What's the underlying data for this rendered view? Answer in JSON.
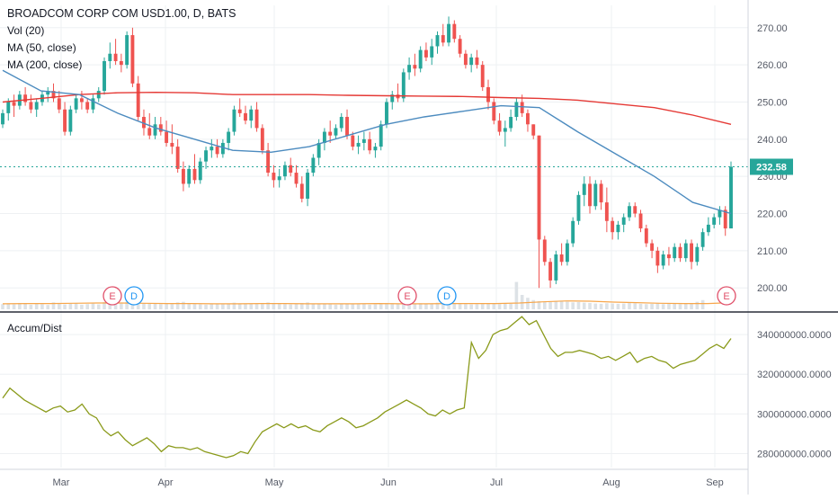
{
  "chart_data": {
    "type": "candlestick",
    "symbol_title": "BROADCOM CORP COM USD1.00, D, BATS",
    "indicators": [
      "Vol (20)",
      "MA (50, close)",
      "MA (200, close)"
    ],
    "last_price_label": "232.58",
    "last_price": 232.58,
    "price_axis": {
      "ticks": [
        "270.00",
        "260.00",
        "250.00",
        "240.00",
        "230.00",
        "220.00",
        "210.00",
        "200.00"
      ],
      "ylim": [
        194,
        276
      ]
    },
    "x_axis": {
      "labels": [
        "Mar",
        "Apr",
        "May",
        "Jun",
        "Jul",
        "Aug",
        "Sep"
      ]
    },
    "events": [
      {
        "label": "E",
        "kind": "earnings",
        "color": "#e0506a"
      },
      {
        "label": "D",
        "kind": "dividend",
        "color": "#2196f3"
      },
      {
        "label": "E",
        "kind": "earnings",
        "color": "#e0506a"
      },
      {
        "label": "D",
        "kind": "dividend",
        "color": "#2196f3"
      },
      {
        "label": "E",
        "kind": "earnings",
        "color": "#e0506a"
      }
    ],
    "ohlc": [
      [
        244,
        248,
        243,
        247
      ],
      [
        247,
        251,
        245,
        250
      ],
      [
        250,
        252,
        246,
        249
      ],
      [
        249,
        253,
        248,
        252
      ],
      [
        252,
        254,
        249,
        250
      ],
      [
        250,
        252,
        247,
        248
      ],
      [
        248,
        251,
        246,
        250
      ],
      [
        250,
        253,
        249,
        252
      ],
      [
        252,
        254,
        250,
        253
      ],
      [
        253,
        255,
        250,
        251
      ],
      [
        251,
        253,
        247,
        248
      ],
      [
        248,
        250,
        241,
        242
      ],
      [
        242,
        249,
        241,
        248
      ],
      [
        248,
        252,
        247,
        251
      ],
      [
        251,
        253,
        248,
        250
      ],
      [
        250,
        251,
        247,
        248
      ],
      [
        248,
        252,
        247,
        251
      ],
      [
        251,
        254,
        250,
        253
      ],
      [
        253,
        262,
        252,
        261
      ],
      [
        261,
        266,
        259,
        263
      ],
      [
        263,
        267,
        260,
        261
      ],
      [
        261,
        263,
        258,
        260
      ],
      [
        260,
        269,
        259,
        268
      ],
      [
        268,
        270,
        254,
        255
      ],
      [
        255,
        257,
        245,
        246
      ],
      [
        246,
        248,
        241,
        243
      ],
      [
        243,
        247,
        240,
        241
      ],
      [
        241,
        246,
        240,
        244
      ],
      [
        244,
        246,
        241,
        242
      ],
      [
        242,
        245,
        238,
        239
      ],
      [
        239,
        244,
        236,
        238
      ],
      [
        238,
        240,
        231,
        232
      ],
      [
        232,
        234,
        226,
        228
      ],
      [
        228,
        233,
        227,
        232
      ],
      [
        232,
        236,
        228,
        229
      ],
      [
        229,
        235,
        228,
        234
      ],
      [
        234,
        238,
        232,
        237
      ],
      [
        237,
        240,
        235,
        238
      ],
      [
        238,
        240,
        235,
        236
      ],
      [
        236,
        240,
        235,
        239
      ],
      [
        239,
        243,
        237,
        242
      ],
      [
        242,
        249,
        241,
        248
      ],
      [
        248,
        251,
        246,
        247
      ],
      [
        247,
        249,
        244,
        245
      ],
      [
        245,
        249,
        243,
        248
      ],
      [
        248,
        250,
        242,
        243
      ],
      [
        243,
        244,
        236,
        237
      ],
      [
        237,
        239,
        230,
        231
      ],
      [
        231,
        233,
        227,
        229
      ],
      [
        229,
        232,
        227,
        230
      ],
      [
        230,
        234,
        229,
        233
      ],
      [
        233,
        235,
        230,
        231
      ],
      [
        231,
        233,
        227,
        228
      ],
      [
        228,
        230,
        223,
        224
      ],
      [
        224,
        232,
        222,
        231
      ],
      [
        231,
        236,
        230,
        235
      ],
      [
        235,
        240,
        233,
        239
      ],
      [
        239,
        243,
        237,
        242
      ],
      [
        242,
        245,
        239,
        241
      ],
      [
        241,
        244,
        240,
        243
      ],
      [
        243,
        247,
        242,
        246
      ],
      [
        246,
        248,
        240,
        241
      ],
      [
        241,
        242,
        237,
        238
      ],
      [
        238,
        241,
        236,
        239
      ],
      [
        239,
        242,
        237,
        240
      ],
      [
        240,
        242,
        236,
        237
      ],
      [
        237,
        239,
        235,
        238
      ],
      [
        238,
        245,
        237,
        244
      ],
      [
        244,
        251,
        243,
        250
      ],
      [
        250,
        253,
        248,
        252
      ],
      [
        252,
        255,
        250,
        251
      ],
      [
        251,
        259,
        250,
        258
      ],
      [
        258,
        262,
        256,
        260
      ],
      [
        260,
        263,
        257,
        259
      ],
      [
        259,
        265,
        258,
        264
      ],
      [
        264,
        266,
        261,
        262
      ],
      [
        262,
        267,
        260,
        265
      ],
      [
        265,
        269,
        263,
        268
      ],
      [
        268,
        271,
        265,
        266
      ],
      [
        266,
        273,
        265,
        271
      ],
      [
        271,
        272,
        266,
        267
      ],
      [
        267,
        268,
        262,
        263
      ],
      [
        263,
        264,
        259,
        260
      ],
      [
        260,
        263,
        258,
        262
      ],
      [
        262,
        264,
        259,
        260
      ],
      [
        260,
        261,
        253,
        254
      ],
      [
        254,
        256,
        248,
        250
      ],
      [
        250,
        251,
        244,
        245
      ],
      [
        245,
        247,
        241,
        242
      ],
      [
        242,
        245,
        238,
        243
      ],
      [
        243,
        248,
        242,
        246
      ],
      [
        246,
        251,
        245,
        250
      ],
      [
        250,
        252,
        246,
        247
      ],
      [
        247,
        248,
        242,
        244
      ],
      [
        244,
        244,
        240,
        241
      ],
      [
        241,
        241,
        200,
        213
      ],
      [
        213,
        214,
        206,
        207
      ],
      [
        207,
        208,
        200,
        202
      ],
      [
        202,
        210,
        201,
        209
      ],
      [
        209,
        212,
        206,
        207
      ],
      [
        207,
        213,
        206,
        212
      ],
      [
        212,
        219,
        211,
        218
      ],
      [
        218,
        226,
        217,
        225
      ],
      [
        225,
        230,
        222,
        228
      ],
      [
        228,
        230,
        220,
        222
      ],
      [
        222,
        229,
        221,
        228
      ],
      [
        228,
        229,
        221,
        223
      ],
      [
        223,
        227,
        215,
        218
      ],
      [
        218,
        219,
        213,
        215
      ],
      [
        215,
        218,
        213,
        217
      ],
      [
        217,
        220,
        215,
        219
      ],
      [
        219,
        223,
        218,
        222
      ],
      [
        222,
        223,
        219,
        220
      ],
      [
        220,
        221,
        215,
        216
      ],
      [
        216,
        217,
        211,
        212
      ],
      [
        212,
        213,
        208,
        210
      ],
      [
        210,
        211,
        204,
        206
      ],
      [
        206,
        210,
        205,
        209
      ],
      [
        209,
        211,
        206,
        208
      ],
      [
        208,
        212,
        207,
        211
      ],
      [
        211,
        212,
        207,
        208
      ],
      [
        208,
        213,
        207,
        212
      ],
      [
        212,
        213,
        205,
        207
      ],
      [
        207,
        212,
        206,
        211
      ],
      [
        211,
        216,
        210,
        215
      ],
      [
        215,
        219,
        214,
        217
      ],
      [
        217,
        220,
        216,
        219
      ],
      [
        219,
        222,
        217,
        221
      ],
      [
        221,
        222,
        214,
        216
      ],
      [
        216,
        234,
        216,
        232.58
      ]
    ],
    "ma50": [
      258.5,
      253,
      252,
      247,
      243,
      240,
      237,
      236.5,
      238,
      241,
      244,
      246,
      247.5,
      249,
      248.5,
      242,
      236,
      230,
      223,
      220
    ],
    "ma200": [
      250,
      251,
      252,
      252.5,
      252.6,
      252.5,
      252,
      252,
      252,
      251.8,
      251.7,
      251.6,
      251.5,
      251.2,
      251,
      250.5,
      249.5,
      248.5,
      246.5,
      244
    ],
    "volume": [
      1.8,
      2.0,
      1.7,
      2.2,
      1.9,
      1.6,
      2.1,
      1.8,
      1.5,
      2.4,
      2.0,
      1.7,
      1.9,
      2.2,
      1.6,
      1.8,
      2.0,
      1.7,
      2.5,
      2.2,
      2.8,
      2.0,
      2.6,
      3.0,
      2.4,
      2.1,
      1.9,
      2.0,
      1.8,
      2.2,
      1.9,
      2.4,
      2.6,
      2.0,
      1.8,
      1.7,
      1.6,
      1.9,
      1.8,
      1.7,
      1.9,
      2.3,
      2.0,
      1.8,
      1.9,
      2.0,
      2.2,
      2.4,
      2.1,
      1.9,
      1.8,
      1.7,
      2.0,
      2.2,
      2.4,
      2.0,
      1.9,
      1.8,
      1.7,
      1.6,
      1.8,
      2.0,
      1.9,
      1.7,
      1.8,
      1.6,
      1.7,
      2.0,
      2.2,
      2.1,
      1.9,
      2.0,
      2.2,
      1.9,
      2.1,
      1.8,
      2.0,
      2.3,
      2.1,
      2.4,
      2.0,
      1.9,
      1.8,
      1.7,
      1.8,
      2.0,
      2.1,
      1.9,
      1.8,
      2.2,
      1.9,
      9.5,
      5.0,
      4.0,
      3.2,
      2.8,
      2.6,
      2.5,
      2.9,
      3.0,
      2.6,
      2.4,
      2.5,
      2.3,
      2.2,
      2.0,
      1.9,
      2.1,
      2.0,
      1.9,
      2.0,
      2.2,
      2.1,
      1.9,
      1.8,
      1.9,
      2.0,
      1.8,
      1.9,
      2.0,
      1.8,
      1.9,
      2.0,
      2.6,
      3.2
    ],
    "vol_ma": [
      1.9,
      2.0,
      2.0,
      2.1,
      2.2,
      2.2,
      2.1,
      2.0,
      2.0,
      1.9,
      1.9,
      2.0,
      2.0,
      1.9,
      1.9,
      1.9,
      2.0,
      1.9,
      1.9,
      2.0,
      2.0,
      2.0,
      2.2,
      2.6,
      2.9,
      2.8,
      2.5,
      2.3,
      2.1,
      2.0,
      2.0,
      2.3
    ],
    "accum_dist": {
      "label": "Accum/Dist",
      "ticks": [
        "340000000.0000",
        "320000000.0000",
        "300000000.0000",
        "280000000.0000"
      ],
      "ylim": [
        273000000,
        350000000
      ],
      "values": [
        308,
        313,
        310,
        307,
        305,
        303,
        301,
        303,
        304,
        301,
        302,
        305,
        300,
        298,
        292,
        289,
        291,
        287,
        284,
        286,
        288,
        285,
        281,
        284,
        283,
        283,
        282,
        283,
        281,
        280,
        279,
        278,
        279,
        281,
        280,
        286,
        291,
        293,
        295,
        293,
        295,
        293,
        294,
        292,
        291,
        294,
        296,
        298,
        296,
        293,
        294,
        296,
        298,
        301,
        303,
        305,
        307,
        305,
        303,
        300,
        299,
        302,
        300,
        302,
        303,
        336,
        328,
        332,
        340,
        342,
        343,
        346,
        349,
        345,
        347,
        340,
        333,
        329,
        331,
        331,
        332,
        331,
        330,
        328,
        329,
        327,
        329,
        331,
        326,
        328,
        329,
        327,
        326,
        323,
        325,
        326,
        327,
        330,
        333,
        335,
        333,
        338
      ]
    }
  },
  "colors": {
    "up": "#26a69a",
    "down": "#ef5350",
    "ma50": "#4c8bbf",
    "ma200": "#e53935",
    "vol_ma": "#f7a64a",
    "volume": "#dde2e6",
    "accum": "#8a9a1a",
    "last_price": "#26a69a",
    "grid": "#eef0f3",
    "axis_text": "#555a66"
  }
}
